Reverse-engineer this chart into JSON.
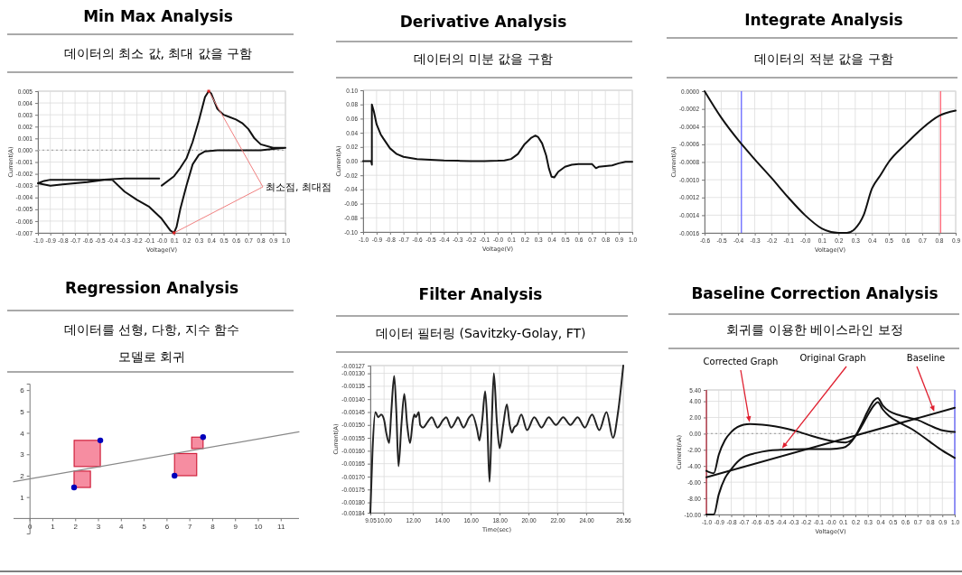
{
  "chart_data": [
    {
      "type": "line",
      "title": "Min Max Analysis",
      "subtitle": "데이터의 최소 값, 최대 값을 구함",
      "xlabel": "Voltage(V)",
      "ylabel": "Current(A)",
      "grid": true,
      "xlim": [
        -1,
        1
      ],
      "xticks": [
        {
          "value": -1,
          "label": "-1.0"
        },
        -0.9,
        -0.8,
        -0.7,
        -0.6,
        -0.5,
        -0.4,
        -0.3,
        -0.2,
        -0.1,
        {
          "value": 0,
          "label": "-0.0"
        },
        0.1,
        0.2,
        0.3,
        0.4,
        0.5,
        0.6,
        0.7,
        0.8,
        0.9,
        {
          "value": 1,
          "label": "1.0"
        }
      ],
      "ylim": [
        -0.007,
        0.005
      ],
      "yticks": [
        0.005,
        0.004,
        0.003,
        0.002,
        0.001,
        {
          "value": 0,
          "label": "0.000"
        },
        -0.001,
        -0.002,
        -0.003,
        -0.004,
        -0.005,
        -0.006,
        -0.007
      ],
      "ref_lines": [
        {
          "axis": "y",
          "value": 0,
          "color": "#aaaaaa",
          "line_style": "dotted"
        }
      ],
      "annotations": [
        "최소점, 최대점"
      ],
      "series": [
        {
          "color": "#111111",
          "x": [
            0,
            0.1,
            0.15,
            0.2,
            0.25,
            0.3,
            0.35,
            0.38,
            0.4,
            0.45,
            0.5,
            0.6,
            0.65,
            0.7,
            0.75,
            0.8,
            0.9,
            1,
            0.9,
            0.8,
            0.6,
            0.45,
            0.35,
            0.3,
            0.25,
            0.2,
            0.15,
            0.12,
            0.1,
            0.07,
            0,
            -0.05,
            -0.1,
            -0.2,
            -0.3,
            -0.4,
            -0.45,
            -0.6,
            -0.8,
            -0.9,
            -1,
            -0.95,
            -0.9,
            -0.7,
            -0.5,
            -0.3,
            -0.1,
            -0.02
          ],
          "values": [
            -0.003,
            -0.0022,
            -0.0015,
            -0.0007,
            0.0007,
            0.0025,
            0.0045,
            0.005,
            0.0048,
            0.0035,
            0.003,
            0.0026,
            0.0023,
            0.0018,
            0.001,
            0.0005,
            0.0002,
            0.0002,
            0.0001,
            0,
            0,
            0,
            -0.0001,
            -0.0004,
            -0.0012,
            -0.003,
            -0.005,
            -0.0065,
            -0.007,
            -0.0068,
            -0.0058,
            -0.0053,
            -0.0048,
            -0.0042,
            -0.0035,
            -0.0025,
            -0.0025,
            -0.0027,
            -0.0029,
            -0.003,
            -0.0028,
            -0.0026,
            -0.0025,
            -0.0025,
            -0.0025,
            -0.0024,
            -0.0024,
            -0.0024
          ]
        }
      ]
    },
    {
      "type": "line",
      "title": "Derivative Analysis",
      "subtitle": "데이터의 미분 값을 구함",
      "xlabel": "Voltage(V)",
      "ylabel": "Current(A)",
      "grid": true,
      "xlim": [
        -1,
        1
      ],
      "xticks": [
        {
          "value": -1,
          "label": "-1.0"
        },
        -0.9,
        -0.8,
        -0.7,
        -0.6,
        -0.5,
        -0.4,
        -0.3,
        -0.2,
        -0.1,
        {
          "value": 0,
          "label": "-0.0"
        },
        0.1,
        0.2,
        0.3,
        0.4,
        0.5,
        0.6,
        0.7,
        0.8,
        0.9,
        {
          "value": 1,
          "label": "1.0"
        }
      ],
      "ylim": [
        -0.1,
        0.1
      ],
      "yticks": [
        {
          "value": 0.1,
          "label": "0.10"
        },
        0.08,
        0.06,
        0.04,
        0.02,
        {
          "value": 0,
          "label": "0.00"
        },
        -0.02,
        -0.04,
        -0.06,
        -0.08,
        {
          "value": -0.1,
          "label": "-0.10"
        }
      ],
      "series": [
        {
          "color": "#111111",
          "x": [
            -1,
            -0.94,
            -0.935,
            -0.935,
            -0.92,
            -0.9,
            -0.87,
            -0.85,
            -0.8,
            -0.75,
            -0.7,
            -0.6,
            -0.5,
            -0.4,
            -0.3,
            -0.2,
            -0.1,
            0,
            0.05,
            0.1,
            0.15,
            0.2,
            0.25,
            0.28,
            0.3,
            0.33,
            0.36,
            0.38,
            0.4,
            0.42,
            0.45,
            0.5,
            0.55,
            0.6,
            0.7,
            0.73,
            0.75,
            0.8,
            0.85,
            0.9,
            0.95,
            1
          ],
          "values": [
            0,
            0,
            -0.005,
            0.08,
            0.07,
            0.052,
            0.038,
            0.032,
            0.018,
            0.01,
            0.006,
            0.003,
            0.002,
            0.001,
            0.0005,
            0,
            0,
            0.0005,
            0.001,
            0.003,
            0.01,
            0.024,
            0.033,
            0.036,
            0.034,
            0.025,
            0.008,
            -0.01,
            -0.022,
            -0.023,
            -0.015,
            -0.008,
            -0.005,
            -0.004,
            -0.004,
            -0.01,
            -0.008,
            -0.007,
            -0.006,
            -0.003,
            -0.001,
            -0.001
          ]
        }
      ]
    },
    {
      "type": "line",
      "title": "Integrate Analysis",
      "subtitle": "데이터의 적분 값을 구함",
      "xlabel": "Voltage(V)",
      "ylabel": "Current(A)",
      "grid": true,
      "xlim": [
        -0.6,
        0.9
      ],
      "xticks": [
        -0.6,
        -0.5,
        -0.4,
        -0.3,
        -0.2,
        -0.1,
        {
          "value": 0,
          "label": "-0.0"
        },
        0.1,
        0.2,
        0.3,
        0.4,
        0.5,
        0.6,
        0.7,
        0.8,
        0.9
      ],
      "ylim": [
        -0.0016,
        0
      ],
      "yticks": [
        {
          "value": 0,
          "label": "0.0000"
        },
        -0.0002,
        -0.0004,
        -0.0006,
        -0.0008,
        {
          "value": -0.001,
          "label": "-0.0010"
        },
        -0.0012,
        -0.0014,
        -0.0016
      ],
      "ref_lines": [
        {
          "axis": "x",
          "value": -0.38,
          "color": "#6666ff"
        },
        {
          "axis": "x",
          "value": 0.81,
          "color": "#ff6677"
        }
      ],
      "series": [
        {
          "color": "#111111",
          "x": [
            -0.6,
            -0.5,
            -0.4,
            -0.3,
            -0.2,
            -0.1,
            0,
            0.1,
            0.2,
            0.25,
            0.3,
            0.35,
            0.4,
            0.45,
            0.5,
            0.6,
            0.7,
            0.8,
            0.9
          ],
          "values": [
            0,
            -0.0003,
            -0.00055,
            -0.00077,
            -0.00098,
            -0.0012,
            -0.0014,
            -0.00155,
            -0.0016,
            -0.0016,
            -0.00155,
            -0.0014,
            -0.0011,
            -0.00095,
            -0.0008,
            -0.0006,
            -0.00042,
            -0.00028,
            -0.00022
          ]
        }
      ]
    },
    {
      "type": "scatter",
      "title": "Regression Analysis",
      "subtitle": "데이터를 선형, 다항, 지수 함수 모델로 회귀",
      "grid": false,
      "marker": "circle",
      "xlim": [
        -0.7,
        11.8
      ],
      "xticks": [
        0,
        1,
        2,
        3,
        4,
        5,
        6,
        7,
        8,
        9,
        10,
        11
      ],
      "ylim": [
        -0.7,
        6.3
      ],
      "yticks": [
        1,
        2,
        3,
        4,
        5,
        6
      ],
      "series": [
        {
          "color": "#0000bb",
          "x": [
            1.95,
            3.1,
            6.35,
            7.6
          ],
          "values": [
            1.45,
            3.65,
            2,
            3.8
          ]
        },
        {
          "type": "line",
          "marker": "none",
          "color": "#888888",
          "x": [
            -0.7,
            11.8
          ],
          "values": [
            1.72,
            4.05
          ]
        }
      ]
    },
    {
      "type": "line",
      "title": "Filter Analysis",
      "subtitle": "데이터 필터링 (Savitzky-Golay, FT)",
      "xlabel": "Time(sec)",
      "ylabel": "Current(A)",
      "grid": true,
      "xlim": [
        9.05,
        26.56
      ],
      "xticks": [
        9.05,
        {
          "value": 10,
          "label": "10.00"
        },
        {
          "value": 12,
          "label": "12.00"
        },
        {
          "value": 14,
          "label": "14.00"
        },
        {
          "value": 16,
          "label": "16.00"
        },
        {
          "value": 18,
          "label": "18.00"
        },
        {
          "value": 20,
          "label": "20.00"
        },
        {
          "value": 22,
          "label": "22.00"
        },
        {
          "value": 24,
          "label": "24.00"
        },
        26.56
      ],
      "ylim": [
        -0.00184,
        -0.00127
      ],
      "yticks": [
        -0.00127,
        {
          "value": -0.0013,
          "label": "-0.00130"
        },
        -0.00135,
        {
          "value": -0.0014,
          "label": "-0.00140"
        },
        -0.00145,
        {
          "value": -0.0015,
          "label": "-0.00150"
        },
        -0.00155,
        {
          "value": -0.0016,
          "label": "-0.00160"
        },
        -0.00165,
        {
          "value": -0.0017,
          "label": "-0.00170"
        },
        -0.00175,
        {
          "value": -0.0018,
          "label": "-0.00180"
        },
        -0.00184
      ],
      "series": [
        {
          "color": "#222222",
          "x": [
            9.05,
            9.2,
            9.4,
            9.6,
            9.8,
            10,
            10.15,
            10.35,
            10.5,
            10.7,
            10.85,
            11,
            11.2,
            11.4,
            11.6,
            11.8,
            12,
            12.1,
            12.2,
            12.4,
            12.5,
            12.7,
            13,
            13.3,
            13.7,
            14.1,
            14.3,
            14.65,
            15,
            15.1,
            15.5,
            15.9,
            16.1,
            16.45,
            16.6,
            16.8,
            17,
            17.15,
            17.3,
            17.45,
            17.6,
            17.8,
            18,
            18.25,
            18.5,
            18.7,
            18.85,
            19,
            19.2,
            19.5,
            19.9,
            20.4,
            20.9,
            21.4,
            21.9,
            22.4,
            22.9,
            23.4,
            23.9,
            24.4,
            24.9,
            25.4,
            25.85,
            26.2,
            26.56
          ],
          "values": [
            -0.00184,
            -0.0016,
            -0.00145,
            -0.00147,
            -0.00146,
            -0.00148,
            -0.00153,
            -0.00157,
            -0.00145,
            -0.00131,
            -0.00145,
            -0.00166,
            -0.0015,
            -0.00138,
            -0.0015,
            -0.00157,
            -0.00148,
            -0.00146,
            -0.00147,
            -0.00145,
            -0.0015,
            -0.00151,
            -0.00149,
            -0.00147,
            -0.00151,
            -0.00148,
            -0.00147,
            -0.00151,
            -0.00148,
            -0.00147,
            -0.00151,
            -0.00147,
            -0.00146,
            -0.00152,
            -0.00156,
            -0.00148,
            -0.00137,
            -0.0015,
            -0.00172,
            -0.0015,
            -0.0013,
            -0.00148,
            -0.00159,
            -0.0015,
            -0.00142,
            -0.0015,
            -0.00153,
            -0.00151,
            -0.0015,
            -0.00146,
            -0.00152,
            -0.00147,
            -0.00151,
            -0.00147,
            -0.0015,
            -0.00147,
            -0.0015,
            -0.00147,
            -0.00151,
            -0.00146,
            -0.00152,
            -0.00145,
            -0.00155,
            -0.00145,
            -0.00127
          ]
        }
      ]
    },
    {
      "type": "line",
      "title": "Baseline Correction Analysis",
      "subtitle": "회귀를 이용한 베이스라인 보정",
      "xlabel": "Voltage(V)",
      "ylabel": "Current(nA)",
      "grid": true,
      "xlim": [
        -1,
        1
      ],
      "xticks": [
        {
          "value": -1,
          "label": "-1.0"
        },
        -0.9,
        -0.8,
        -0.7,
        -0.6,
        -0.5,
        -0.4,
        -0.3,
        -0.2,
        -0.1,
        {
          "value": 0,
          "label": "-0.0"
        },
        0.1,
        0.2,
        0.3,
        0.4,
        0.5,
        0.6,
        0.7,
        0.8,
        0.9,
        {
          "value": 1,
          "label": "1.0"
        }
      ],
      "ylim": [
        -10,
        5.4
      ],
      "yticks": [
        {
          "value": 5.4,
          "label": "5.40"
        },
        {
          "value": 4,
          "label": "4.00"
        },
        {
          "value": 2,
          "label": "2.00"
        },
        {
          "value": 0,
          "label": "0.00"
        },
        {
          "value": -2,
          "label": "-2.00"
        },
        {
          "value": -4,
          "label": "-4.00"
        },
        {
          "value": -6,
          "label": "-6.00"
        },
        {
          "value": -8,
          "label": "-8.00"
        },
        {
          "value": -10,
          "label": "-10.00"
        }
      ],
      "ref_lines": [
        {
          "axis": "y",
          "value": 0,
          "color": "#aaaaaa",
          "line_style": "dotted"
        },
        {
          "axis": "x",
          "value": -1,
          "color": "#cc4455"
        },
        {
          "axis": "x",
          "value": 1,
          "color": "#6666ff"
        }
      ],
      "series": [
        {
          "name": "Corrected Graph",
          "color": "#111111",
          "x": [
            -1,
            -0.94,
            -0.9,
            -0.85,
            -0.8,
            -0.75,
            -0.7,
            -0.65,
            -0.55,
            -0.45,
            -0.35,
            -0.25,
            -0.15,
            -0.05,
            0.05,
            0.12,
            0.17,
            0.2,
            0.25,
            0.3,
            0.35,
            0.38,
            0.42,
            0.47,
            0.55,
            0.65,
            0.7,
            0.8,
            0.9,
            1
          ],
          "values": [
            -4.6,
            -4.9,
            -2.6,
            -0.8,
            0.2,
            0.8,
            1.1,
            1.2,
            1.1,
            0.9,
            0.6,
            0.2,
            -0.3,
            -0.7,
            -1,
            -1.1,
            -0.8,
            -0.3,
            0.9,
            2.3,
            3.5,
            3.9,
            3,
            2.2,
            1.4,
            0.6,
            0.1,
            -1,
            -2.1,
            -3
          ]
        },
        {
          "name": "Original Graph",
          "color": "#111111",
          "x": [
            -1,
            -0.94,
            -0.9,
            -0.85,
            -0.8,
            -0.75,
            -0.7,
            -0.6,
            -0.5,
            -0.4,
            -0.3,
            -0.2,
            -0.1,
            0,
            0.1,
            0.15,
            0.2,
            0.25,
            0.3,
            0.35,
            0.38,
            0.42,
            0.47,
            0.55,
            0.65,
            0.7,
            0.8,
            0.9,
            1
          ],
          "values": [
            -10,
            -10,
            -7.5,
            -5.5,
            -4.4,
            -3.5,
            -2.9,
            -2.4,
            -2.1,
            -2,
            -1.95,
            -1.9,
            -1.9,
            -1.9,
            -1.75,
            -1.3,
            -0.3,
            1.2,
            2.8,
            4.1,
            4.4,
            3.5,
            2.8,
            2.3,
            1.9,
            1.7,
            1,
            0.4,
            0.2
          ]
        },
        {
          "name": "Baseline",
          "color": "#111111",
          "x": [
            -1,
            1
          ],
          "values": [
            -5.4,
            3.2
          ]
        }
      ]
    }
  ]
}
